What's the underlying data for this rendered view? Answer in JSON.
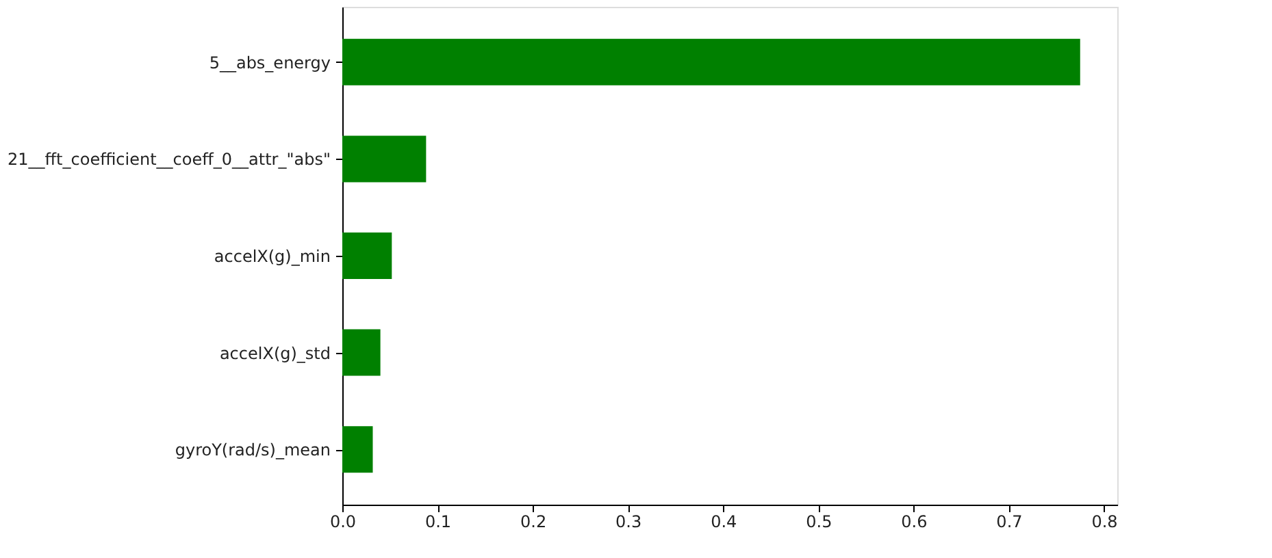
{
  "chart_data": {
    "type": "bar",
    "orientation": "horizontal",
    "categories": [
      "5__abs_energy",
      "21__fft_coefficient__coeff_0__attr_\"abs\"",
      "accelX(g)_min",
      "accelX(g)_std",
      "gyroY(rad/s)_mean"
    ],
    "values": [
      0.775,
      0.088,
      0.052,
      0.04,
      0.032
    ],
    "color": "#008000",
    "xlim": [
      0,
      0.814
    ],
    "xticks": [
      {
        "value": 0,
        "label": "0.0"
      },
      0.1,
      0.2,
      0.3,
      0.4,
      0.5,
      0.6,
      0.7,
      0.8
    ],
    "grid": false
  }
}
